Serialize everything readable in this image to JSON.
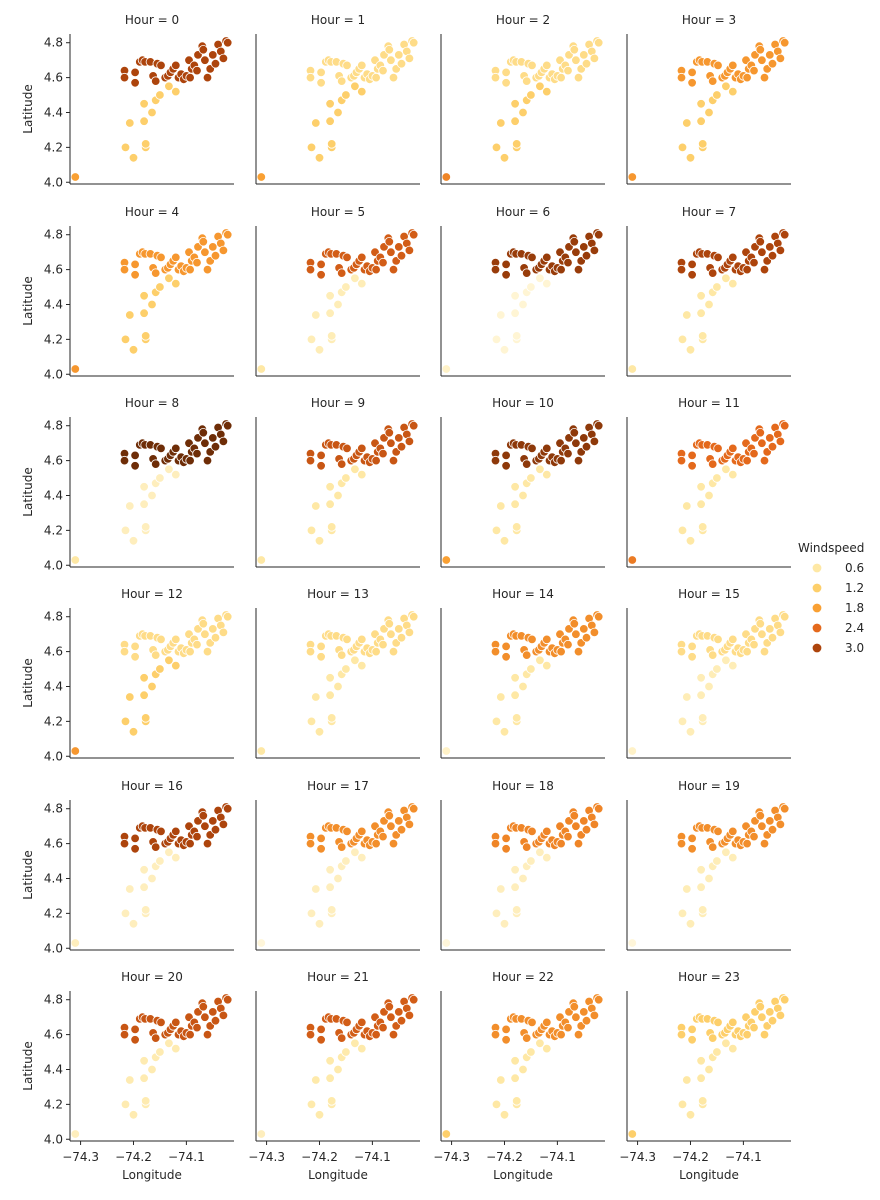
{
  "chart_data": {
    "type": "scatter",
    "layout": "facet-grid",
    "facet_variable": "Hour",
    "facet_titles": [
      "Hour = 0",
      "Hour = 1",
      "Hour = 2",
      "Hour = 3",
      "Hour = 4",
      "Hour = 5",
      "Hour = 6",
      "Hour = 7",
      "Hour = 8",
      "Hour = 9",
      "Hour = 10",
      "Hour = 11",
      "Hour = 12",
      "Hour = 13",
      "Hour = 14",
      "Hour = 15",
      "Hour = 16",
      "Hour = 17",
      "Hour = 18",
      "Hour = 19",
      "Hour = 20",
      "Hour = 21",
      "Hour = 22",
      "Hour = 23"
    ],
    "xlabel": "Longitude",
    "ylabel": "Latitude",
    "xlim": [
      -74.32,
      -74.01
    ],
    "ylim": [
      3.99,
      4.85
    ],
    "xticks": [
      -74.3,
      -74.2,
      -74.1
    ],
    "xtick_labels": [
      "−74.3",
      "−74.2",
      "−74.1"
    ],
    "yticks": [
      4.0,
      4.2,
      4.4,
      4.6,
      4.8
    ],
    "ytick_labels": [
      "4.0",
      "4.2",
      "4.4",
      "4.6",
      "4.8"
    ],
    "grid": false,
    "legend": {
      "title": "Windspeed",
      "placement": "right",
      "entries": [
        {
          "label": "0.6",
          "value": 0.6
        },
        {
          "label": "1.2",
          "value": 1.2
        },
        {
          "label": "1.8",
          "value": 1.8
        },
        {
          "label": "2.4",
          "value": 2.4
        },
        {
          "label": "3.0",
          "value": 3.0
        }
      ]
    },
    "color_scale": {
      "domain": [
        0.1,
        0.6,
        1.2,
        1.8,
        2.4,
        3.0,
        3.6
      ],
      "colors": [
        "#fff8e0",
        "#fee8a5",
        "#fdcf6b",
        "#f9a033",
        "#e4691c",
        "#ad440c",
        "#6e2d07"
      ]
    },
    "stations": [
      {
        "lon": -74.31,
        "lat": 4.03,
        "group": "far"
      },
      {
        "lon": -74.217,
        "lat": 4.64,
        "group": "north"
      },
      {
        "lon": -74.217,
        "lat": 4.6,
        "group": "north"
      },
      {
        "lon": -74.197,
        "lat": 4.63,
        "group": "north"
      },
      {
        "lon": -74.197,
        "lat": 4.57,
        "group": "north"
      },
      {
        "lon": -74.188,
        "lat": 4.69,
        "group": "north"
      },
      {
        "lon": -74.183,
        "lat": 4.7,
        "group": "north"
      },
      {
        "lon": -74.178,
        "lat": 4.69,
        "group": "north"
      },
      {
        "lon": -74.168,
        "lat": 4.69,
        "group": "north"
      },
      {
        "lon": -74.163,
        "lat": 4.61,
        "group": "north"
      },
      {
        "lon": -74.158,
        "lat": 4.58,
        "group": "north"
      },
      {
        "lon": -74.155,
        "lat": 4.68,
        "group": "north"
      },
      {
        "lon": -74.148,
        "lat": 4.67,
        "group": "north"
      },
      {
        "lon": -74.14,
        "lat": 4.6,
        "group": "north"
      },
      {
        "lon": -74.135,
        "lat": 4.61,
        "group": "north"
      },
      {
        "lon": -74.13,
        "lat": 4.63,
        "group": "north"
      },
      {
        "lon": -74.125,
        "lat": 4.65,
        "group": "north"
      },
      {
        "lon": -74.12,
        "lat": 4.67,
        "group": "north"
      },
      {
        "lon": -74.115,
        "lat": 4.6,
        "group": "north"
      },
      {
        "lon": -74.11,
        "lat": 4.62,
        "group": "north"
      },
      {
        "lon": -74.105,
        "lat": 4.59,
        "group": "north"
      },
      {
        "lon": -74.1,
        "lat": 4.61,
        "group": "north"
      },
      {
        "lon": -74.095,
        "lat": 4.7,
        "group": "north"
      },
      {
        "lon": -74.093,
        "lat": 4.6,
        "group": "north"
      },
      {
        "lon": -74.09,
        "lat": 4.65,
        "group": "north"
      },
      {
        "lon": -74.085,
        "lat": 4.67,
        "group": "north"
      },
      {
        "lon": -74.08,
        "lat": 4.64,
        "group": "north"
      },
      {
        "lon": -74.078,
        "lat": 4.73,
        "group": "north"
      },
      {
        "lon": -74.07,
        "lat": 4.78,
        "group": "north"
      },
      {
        "lon": -74.068,
        "lat": 4.76,
        "group": "north"
      },
      {
        "lon": -74.065,
        "lat": 4.7,
        "group": "north"
      },
      {
        "lon": -74.06,
        "lat": 4.6,
        "group": "north"
      },
      {
        "lon": -74.055,
        "lat": 4.65,
        "group": "north"
      },
      {
        "lon": -74.05,
        "lat": 4.73,
        "group": "north"
      },
      {
        "lon": -74.045,
        "lat": 4.68,
        "group": "north"
      },
      {
        "lon": -74.04,
        "lat": 4.79,
        "group": "north"
      },
      {
        "lon": -74.035,
        "lat": 4.75,
        "group": "north"
      },
      {
        "lon": -74.03,
        "lat": 4.71,
        "group": "north"
      },
      {
        "lon": -74.025,
        "lat": 4.81,
        "group": "north"
      },
      {
        "lon": -74.022,
        "lat": 4.8,
        "group": "north"
      },
      {
        "lon": -74.215,
        "lat": 4.2,
        "group": "south"
      },
      {
        "lon": -74.207,
        "lat": 4.34,
        "group": "south"
      },
      {
        "lon": -74.2,
        "lat": 4.14,
        "group": "south"
      },
      {
        "lon": -74.18,
        "lat": 4.35,
        "group": "south"
      },
      {
        "lon": -74.177,
        "lat": 4.2,
        "group": "south"
      },
      {
        "lon": -74.177,
        "lat": 4.22,
        "group": "south"
      },
      {
        "lon": -74.18,
        "lat": 4.45,
        "group": "south"
      },
      {
        "lon": -74.165,
        "lat": 4.4,
        "group": "south"
      },
      {
        "lon": -74.158,
        "lat": 4.47,
        "group": "south"
      },
      {
        "lon": -74.15,
        "lat": 4.5,
        "group": "south"
      },
      {
        "lon": -74.133,
        "lat": 4.55,
        "group": "south"
      },
      {
        "lon": -74.12,
        "lat": 4.52,
        "group": "south"
      }
    ],
    "panels": [
      {
        "hour": 0,
        "windspeed": {
          "far": 1.8,
          "north": 3.0,
          "south": 1.2
        }
      },
      {
        "hour": 1,
        "windspeed": {
          "far": 1.8,
          "north": 0.9,
          "south": 1.2
        }
      },
      {
        "hour": 2,
        "windspeed": {
          "far": 2.1,
          "north": 0.9,
          "south": 1.2
        }
      },
      {
        "hour": 3,
        "windspeed": {
          "far": 1.9,
          "north": 1.9,
          "south": 1.2
        }
      },
      {
        "hour": 4,
        "windspeed": {
          "far": 1.9,
          "north": 1.9,
          "south": 1.2
        }
      },
      {
        "hour": 5,
        "windspeed": {
          "far": 0.6,
          "north": 2.6,
          "south": 0.45
        }
      },
      {
        "hour": 6,
        "windspeed": {
          "far": 0.3,
          "north": 3.2,
          "south": 0.2
        }
      },
      {
        "hour": 7,
        "windspeed": {
          "far": 0.6,
          "north": 3.0,
          "south": 0.6
        }
      },
      {
        "hour": 8,
        "windspeed": {
          "far": 0.6,
          "north": 3.6,
          "south": 0.4
        }
      },
      {
        "hour": 9,
        "windspeed": {
          "far": 0.6,
          "north": 2.7,
          "south": 0.6
        }
      },
      {
        "hour": 10,
        "windspeed": {
          "far": 1.8,
          "north": 3.3,
          "south": 0.6
        }
      },
      {
        "hour": 11,
        "windspeed": {
          "far": 2.2,
          "north": 2.4,
          "south": 0.6
        }
      },
      {
        "hour": 12,
        "windspeed": {
          "far": 1.9,
          "north": 0.9,
          "south": 1.2
        }
      },
      {
        "hour": 13,
        "windspeed": {
          "far": 0.6,
          "north": 0.9,
          "south": 0.6
        }
      },
      {
        "hour": 14,
        "windspeed": {
          "far": 0.3,
          "north": 2.0,
          "south": 0.6
        }
      },
      {
        "hour": 15,
        "windspeed": {
          "far": 0.3,
          "north": 0.9,
          "south": 0.45
        }
      },
      {
        "hour": 16,
        "windspeed": {
          "far": 0.4,
          "north": 3.0,
          "south": 0.4
        }
      },
      {
        "hour": 17,
        "windspeed": {
          "far": 0.15,
          "north": 2.0,
          "south": 0.4
        }
      },
      {
        "hour": 18,
        "windspeed": {
          "far": 0.15,
          "north": 2.1,
          "south": 0.4
        }
      },
      {
        "hour": 19,
        "windspeed": {
          "far": 0.15,
          "north": 2.0,
          "south": 0.45
        }
      },
      {
        "hour": 20,
        "windspeed": {
          "far": 0.4,
          "north": 2.7,
          "south": 0.5
        }
      },
      {
        "hour": 21,
        "windspeed": {
          "far": 0.4,
          "north": 2.6,
          "south": 0.55
        }
      },
      {
        "hour": 22,
        "windspeed": {
          "far": 1.2,
          "north": 2.0,
          "south": 0.6
        }
      },
      {
        "hour": 23,
        "windspeed": {
          "far": 1.2,
          "north": 1.2,
          "south": 0.6
        }
      }
    ]
  }
}
